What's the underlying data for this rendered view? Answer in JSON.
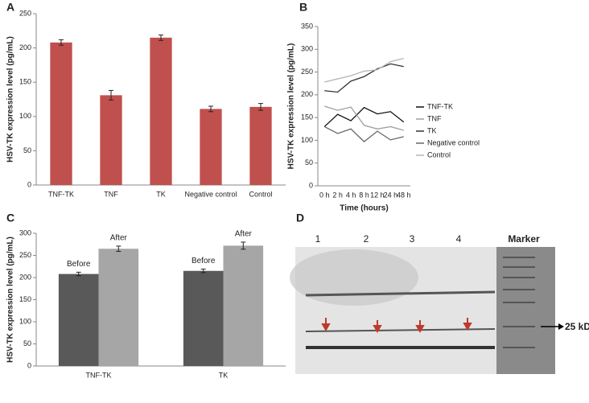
{
  "chart_data": [
    {
      "type": "bar",
      "panel_label": "A",
      "ylabel": "HSV-TK expression level (pg/mL)",
      "categories": [
        "TNF-TK",
        "TNF",
        "TK",
        "Negative control",
        "Control"
      ],
      "values": [
        208,
        131,
        215,
        111,
        114
      ],
      "errors": [
        4,
        7,
        4,
        4,
        5
      ],
      "color": "#c0504d",
      "ylim": [
        0,
        250
      ],
      "yticks": [
        0,
        50,
        100,
        150,
        200,
        250
      ]
    },
    {
      "type": "line",
      "panel_label": "B",
      "ylabel": "HSV-TK expression level (pg/mL)",
      "xlabel": "Time (hours)",
      "categories": [
        "0 h",
        "2 h",
        "4 h",
        "8 h",
        "12 h",
        "24 h",
        "48 h"
      ],
      "series": [
        {
          "name": "TNF-TK",
          "color": "#111111",
          "values": [
            130,
            157,
            143,
            172,
            158,
            163,
            140
          ]
        },
        {
          "name": "TNF",
          "color": "#a0a0a0",
          "values": [
            175,
            166,
            173,
            133,
            125,
            130,
            122
          ]
        },
        {
          "name": "TK",
          "color": "#333333",
          "values": [
            209,
            206,
            230,
            240,
            257,
            268,
            262
          ]
        },
        {
          "name": "Negative control",
          "color": "#666666",
          "values": [
            130,
            115,
            125,
            97,
            120,
            101,
            108
          ]
        },
        {
          "name": "Control",
          "color": "#b5b5b5",
          "values": [
            228,
            235,
            242,
            252,
            255,
            273,
            280
          ]
        }
      ],
      "ylim": [
        0,
        350
      ],
      "yticks": [
        0,
        50,
        100,
        150,
        200,
        250,
        300,
        350
      ],
      "legend": "right"
    },
    {
      "type": "grouped_bar",
      "panel_label": "C",
      "ylabel": "HSV-TK expression level (pg/mL)",
      "categories": [
        "TNF-TK",
        "TK"
      ],
      "series": [
        {
          "name": "Before",
          "color": "#595959",
          "values": [
            208,
            215
          ],
          "errors": [
            4,
            4
          ]
        },
        {
          "name": "After",
          "color": "#a6a6a6",
          "values": [
            265,
            272
          ],
          "errors": [
            6,
            8
          ]
        }
      ],
      "ylim": [
        0,
        300
      ],
      "yticks": [
        0,
        50,
        100,
        150,
        200,
        250,
        300
      ]
    }
  ],
  "blot": {
    "panel_label": "D",
    "lanes": [
      "1",
      "2",
      "3",
      "4"
    ],
    "marker": "Marker",
    "band_label": "25 kD"
  }
}
